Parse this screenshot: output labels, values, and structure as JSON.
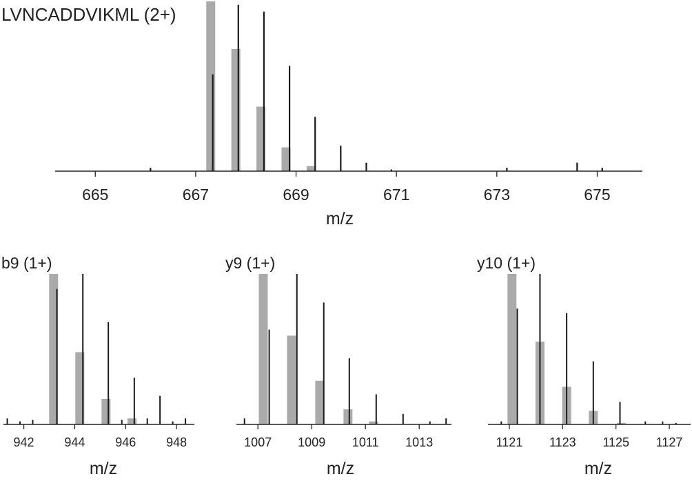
{
  "colors": {
    "theoretical": "#aaaaaa",
    "observed": "#1a1a1a",
    "axis": "#222222",
    "text": "#222222"
  },
  "chart_data": [
    {
      "type": "bar",
      "title": "LVNCADDVIKML (2+)",
      "xlabel": "m/z",
      "ylabel": "",
      "xlim": [
        664.2,
        675.9
      ],
      "ylim": [
        0,
        100
      ],
      "xticks": [
        665,
        667,
        669,
        671,
        673,
        675
      ],
      "series": [
        {
          "role": "theoretical",
          "style": "wide gray bars",
          "x": [
            667.3,
            667.8,
            668.3,
            668.8,
            669.3
          ],
          "values": [
            100,
            72,
            38,
            14,
            3
          ]
        },
        {
          "role": "observed",
          "style": "thin black sticks",
          "x": [
            666.1,
            667.34,
            667.85,
            668.36,
            668.87,
            669.38,
            669.89,
            670.4,
            670.9,
            673.2,
            674.6,
            675.1
          ],
          "values": [
            2,
            57,
            98,
            94,
            62,
            32,
            15,
            5,
            1,
            2,
            5,
            2
          ]
        }
      ]
    },
    {
      "type": "bar",
      "title": "b9 (1+)",
      "xlabel": "m/z",
      "ylabel": "",
      "xlim": [
        941.2,
        948.7
      ],
      "ylim": [
        0,
        100
      ],
      "xticks": [
        942,
        944,
        946,
        948
      ],
      "series": [
        {
          "role": "theoretical",
          "style": "wide gray bars",
          "x": [
            943.17,
            944.2,
            945.23,
            946.25
          ],
          "values": [
            100,
            48,
            17,
            4
          ]
        },
        {
          "role": "observed",
          "style": "thin black sticks",
          "x": [
            941.35,
            941.85,
            942.35,
            943.3,
            944.32,
            945.32,
            945.85,
            946.34,
            946.85,
            947.35,
            947.85,
            948.35
          ],
          "values": [
            4,
            2,
            3,
            90,
            100,
            68,
            3,
            31,
            4,
            19,
            2,
            4
          ]
        }
      ]
    },
    {
      "type": "bar",
      "title": "y9 (1+)",
      "xlabel": "m/z",
      "ylabel": "",
      "xlim": [
        1006.2,
        1014.2
      ],
      "ylim": [
        0,
        100
      ],
      "xticks": [
        1007,
        1009,
        1011,
        1013
      ],
      "series": [
        {
          "role": "theoretical",
          "style": "wide gray bars",
          "x": [
            1007.2,
            1008.25,
            1009.3,
            1010.35,
            1011.3
          ],
          "values": [
            100,
            59,
            29,
            10,
            2
          ]
        },
        {
          "role": "observed",
          "style": "thin black sticks",
          "x": [
            1006.5,
            1007.42,
            1008.45,
            1009.45,
            1010.4,
            1011.4,
            1012.4,
            1013.4,
            1014.0
          ],
          "values": [
            4,
            63,
            100,
            81,
            44,
            20,
            7,
            2,
            4
          ]
        }
      ]
    },
    {
      "type": "bar",
      "title": "y10 (1+)",
      "xlabel": "m/z",
      "ylabel": "",
      "xlim": [
        1120.2,
        1127.8
      ],
      "ylim": [
        0,
        100
      ],
      "xticks": [
        1121,
        1123,
        1125,
        1127
      ],
      "series": [
        {
          "role": "theoretical",
          "style": "wide gray bars",
          "x": [
            1121.1,
            1122.15,
            1123.15,
            1124.15,
            1125.2
          ],
          "values": [
            100,
            55,
            25,
            9,
            1
          ]
        },
        {
          "role": "observed",
          "style": "thin black sticks",
          "x": [
            1120.7,
            1121.3,
            1122.15,
            1123.15,
            1124.15,
            1125.15,
            1126.1,
            1126.75,
            1127.25
          ],
          "values": [
            2,
            77,
            100,
            74,
            42,
            15,
            2,
            2,
            1
          ]
        }
      ]
    }
  ]
}
